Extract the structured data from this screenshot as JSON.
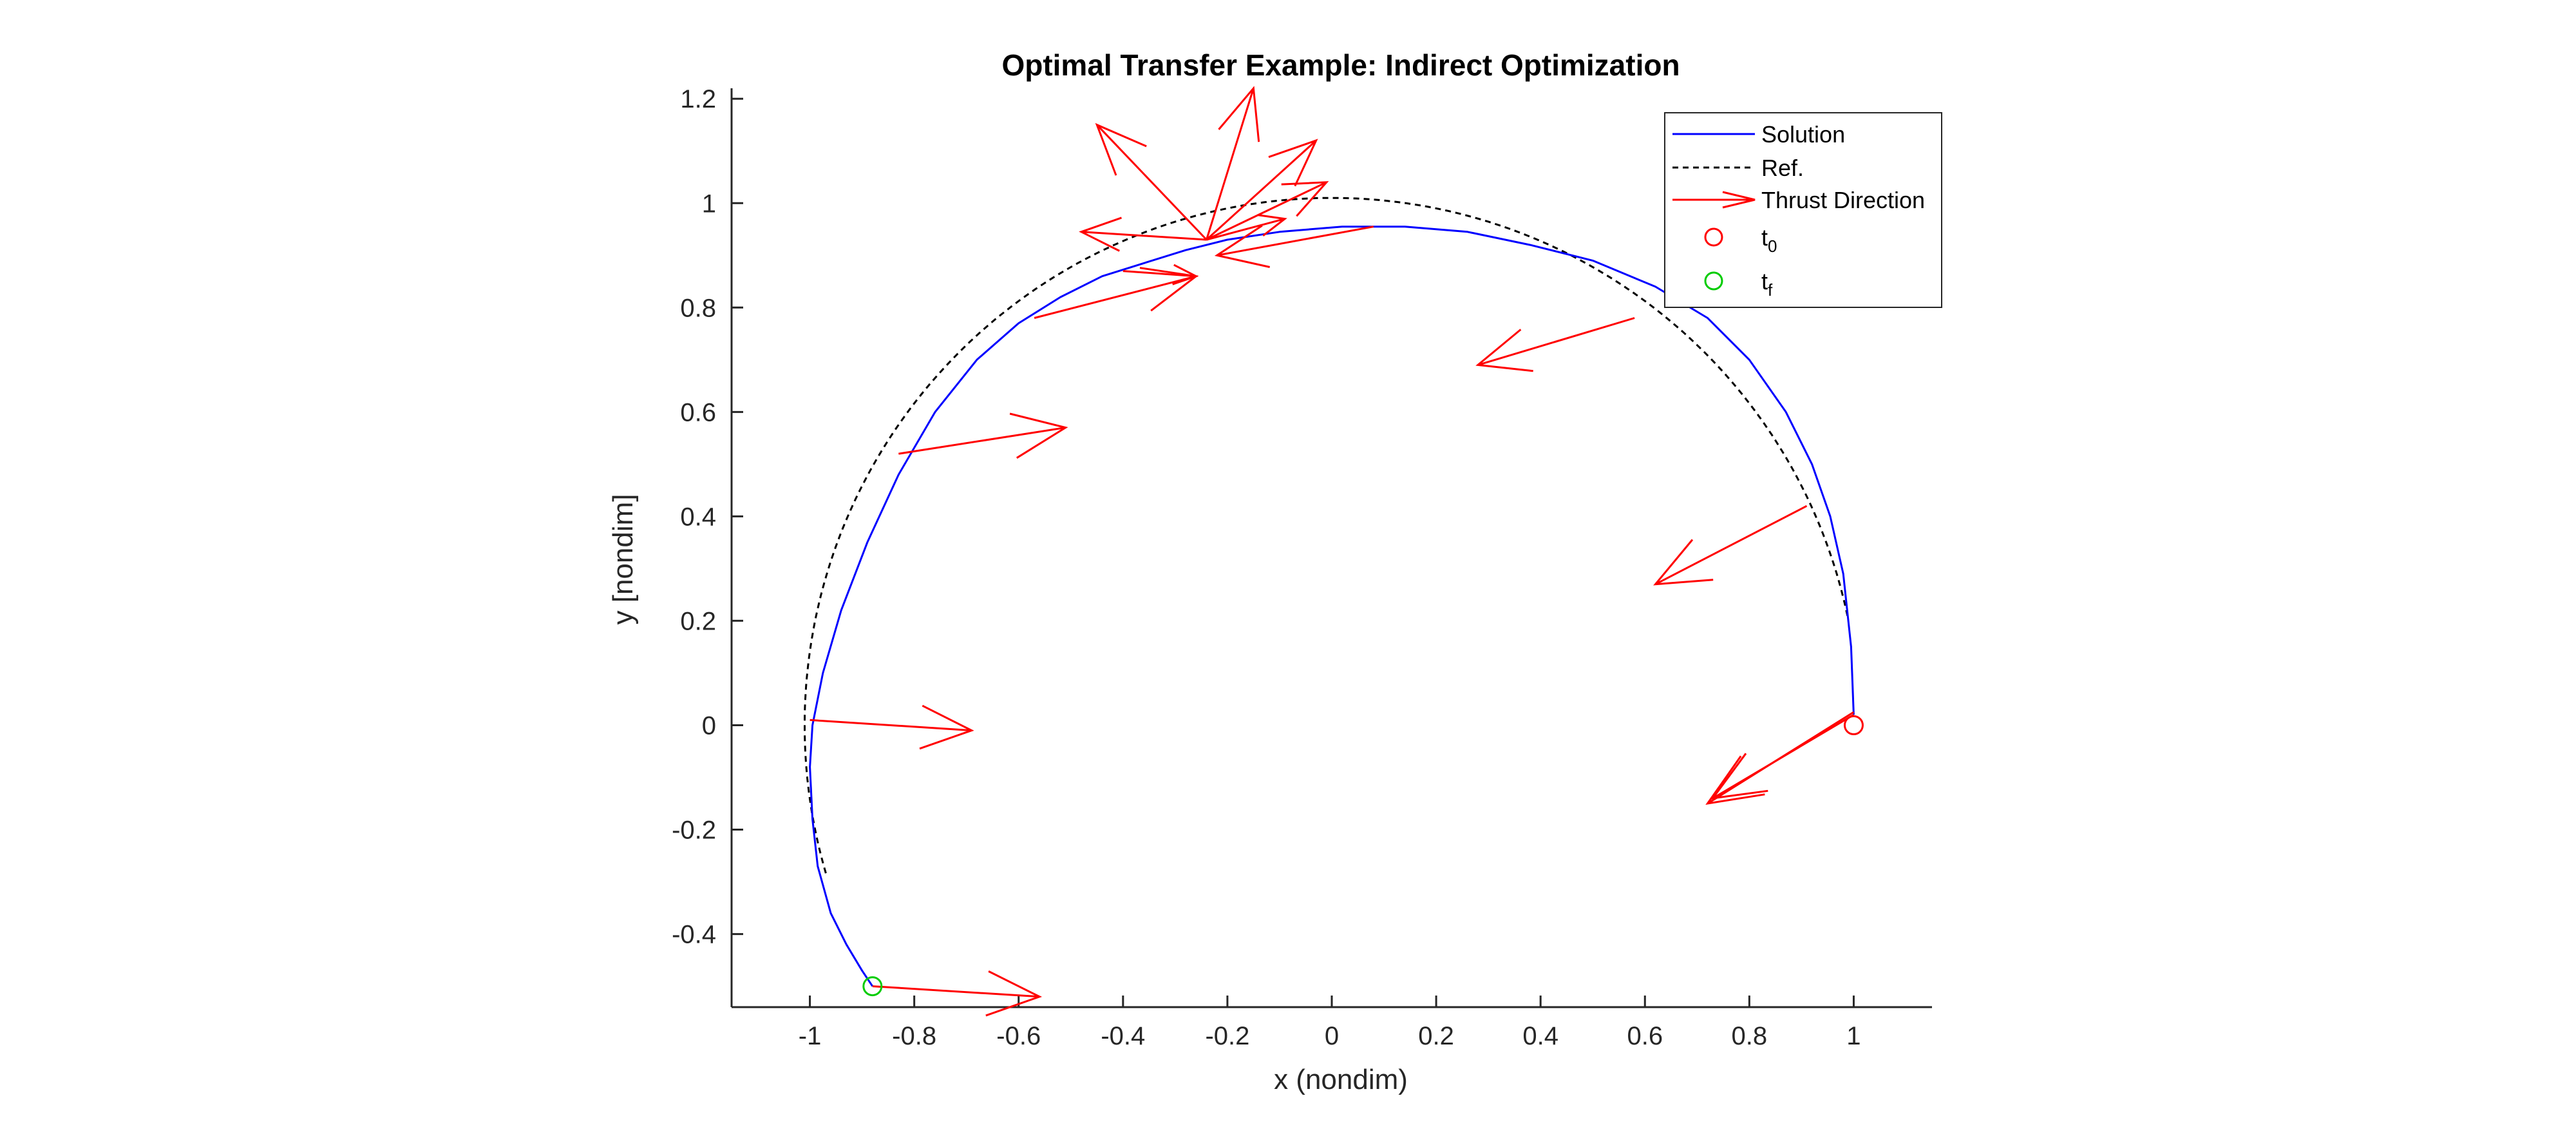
{
  "chart_data": {
    "type": "line",
    "title": "Optimal Transfer Example: Indirect Optimization",
    "xlabel": "x (nondim)",
    "ylabel": "y [nondim]",
    "xlim": [
      -1.15,
      1.15
    ],
    "ylim": [
      -0.54,
      1.22
    ],
    "xticks": [
      -1,
      -0.8,
      -0.6,
      -0.4,
      -0.2,
      0,
      0.2,
      0.4,
      0.6,
      0.8,
      1
    ],
    "yticks": [
      -0.4,
      -0.2,
      0,
      0.2,
      0.4,
      0.6,
      0.8,
      1,
      1.2
    ],
    "xtick_labels": [
      "-1",
      "-0.8",
      "-0.6",
      "-0.4",
      "-0.2",
      "0",
      "0.2",
      "0.4",
      "0.6",
      "0.8",
      "1"
    ],
    "ytick_labels": [
      "-0.4",
      "-0.2",
      "0",
      "0.2",
      "0.4",
      "0.6",
      "0.8",
      "1",
      "1.2"
    ],
    "grid": false,
    "legend_position": "top-right",
    "series": [
      {
        "name": "Solution",
        "style": "solid",
        "color": "#0000ff",
        "x": [
          1.0,
          0.995,
          0.98,
          0.955,
          0.92,
          0.87,
          0.8,
          0.72,
          0.62,
          0.5,
          0.38,
          0.26,
          0.14,
          0.02,
          -0.1,
          -0.2,
          -0.28,
          -0.36,
          -0.44,
          -0.52,
          -0.6,
          -0.68,
          -0.76,
          -0.83,
          -0.89,
          -0.94,
          -0.975,
          -0.995,
          -1.0,
          -0.995,
          -0.985,
          -0.96,
          -0.93,
          -0.9,
          -0.88
        ],
        "y": [
          0.02,
          0.15,
          0.29,
          0.4,
          0.5,
          0.6,
          0.7,
          0.78,
          0.84,
          0.89,
          0.92,
          0.945,
          0.955,
          0.955,
          0.945,
          0.93,
          0.91,
          0.885,
          0.86,
          0.82,
          0.77,
          0.7,
          0.6,
          0.48,
          0.35,
          0.22,
          0.1,
          0.0,
          -0.08,
          -0.18,
          -0.27,
          -0.36,
          -0.42,
          -0.47,
          -0.5
        ]
      },
      {
        "name": "Ref.",
        "style": "dashed",
        "color": "#000000",
        "kind": "arc",
        "center": [
          0,
          0
        ],
        "radius": 1.01,
        "x_start": 0.99,
        "y_start": 0.21,
        "x_end": -0.98,
        "y_end": -0.29
      }
    ],
    "thrust_direction": {
      "name": "Thrust Direction",
      "color": "#ff0000",
      "arrows": [
        {
          "x0": 1.0,
          "y0": 0.02,
          "x1": 0.73,
          "y1": -0.14
        },
        {
          "x0": 1.0,
          "y0": 0.025,
          "x1": 0.72,
          "y1": -0.15
        },
        {
          "x0": 0.91,
          "y0": 0.42,
          "x1": 0.62,
          "y1": 0.27
        },
        {
          "x0": 0.58,
          "y0": 0.78,
          "x1": 0.28,
          "y1": 0.69
        },
        {
          "x0": 0.08,
          "y0": 0.955,
          "x1": -0.22,
          "y1": 0.9
        },
        {
          "x0": -0.24,
          "y0": 0.93,
          "x1": -0.01,
          "y1": 1.04
        },
        {
          "x0": -0.24,
          "y0": 0.93,
          "x1": -0.03,
          "y1": 1.12
        },
        {
          "x0": -0.24,
          "y0": 0.93,
          "x1": -0.15,
          "y1": 1.22
        },
        {
          "x0": -0.24,
          "y0": 0.93,
          "x1": -0.45,
          "y1": 1.15
        },
        {
          "x0": -0.24,
          "y0": 0.93,
          "x1": -0.48,
          "y1": 0.945
        },
        {
          "x0": -0.24,
          "y0": 0.93,
          "x1": -0.09,
          "y1": 0.97
        },
        {
          "x0": -0.4,
          "y0": 0.87,
          "x1": -0.26,
          "y1": 0.86
        },
        {
          "x0": -0.57,
          "y0": 0.78,
          "x1": -0.26,
          "y1": 0.86
        },
        {
          "x0": -0.83,
          "y0": 0.52,
          "x1": -0.51,
          "y1": 0.57
        },
        {
          "x0": -1.0,
          "y0": 0.01,
          "x1": -0.69,
          "y1": -0.01
        },
        {
          "x0": -0.88,
          "y0": -0.5,
          "x1": -0.56,
          "y1": -0.52
        }
      ]
    },
    "markers": [
      {
        "name": "t0",
        "x": 1.0,
        "y": 0.0,
        "color": "#ff0000",
        "shape": "circle"
      },
      {
        "name": "tf",
        "x": -0.88,
        "y": -0.5,
        "color": "#00cc00",
        "shape": "circle"
      }
    ],
    "legend": [
      {
        "label": "Solution",
        "kind": "line",
        "color": "#0000ff",
        "dash": false
      },
      {
        "label": "Ref.",
        "kind": "line",
        "color": "#000000",
        "dash": true
      },
      {
        "label": "Thrust Direction",
        "kind": "arrow",
        "color": "#ff0000"
      },
      {
        "label": "t",
        "sub": "0",
        "kind": "circle",
        "color": "#ff0000"
      },
      {
        "label": "t",
        "sub": "f",
        "kind": "circle",
        "color": "#00cc00"
      }
    ]
  }
}
